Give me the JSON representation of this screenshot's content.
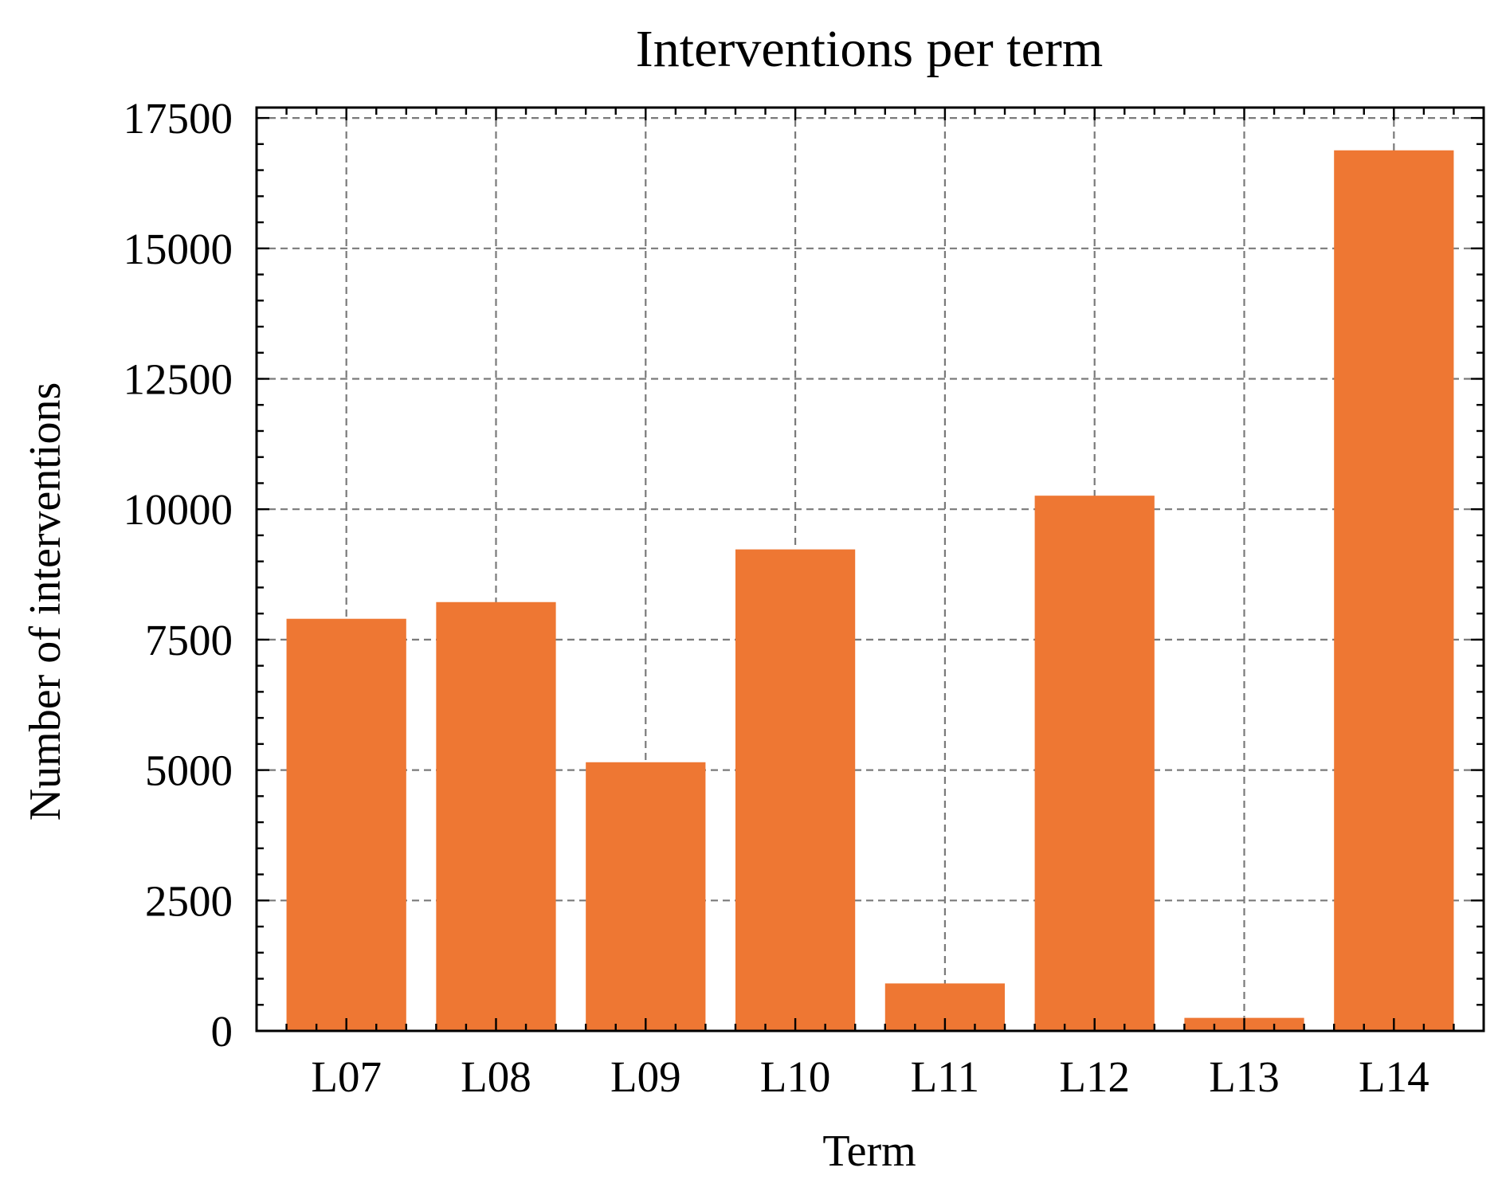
{
  "chart_data": {
    "type": "bar",
    "title": "Interventions per term",
    "xlabel": "Term",
    "ylabel": "Number of interventions",
    "categories": [
      "L07",
      "L08",
      "L09",
      "L10",
      "L11",
      "L12",
      "L13",
      "L14"
    ],
    "values": [
      7900,
      8220,
      5150,
      9230,
      910,
      10260,
      250,
      16880
    ],
    "ylim": [
      0,
      17700
    ],
    "yticks": [
      0,
      2500,
      5000,
      7500,
      10000,
      12500,
      15000,
      17500
    ],
    "ytick_labels": [
      "0",
      "2500",
      "5000",
      "7500",
      "10000",
      "12500",
      "15000",
      "17500"
    ],
    "grid": true,
    "bar_color": "#ee7733"
  }
}
